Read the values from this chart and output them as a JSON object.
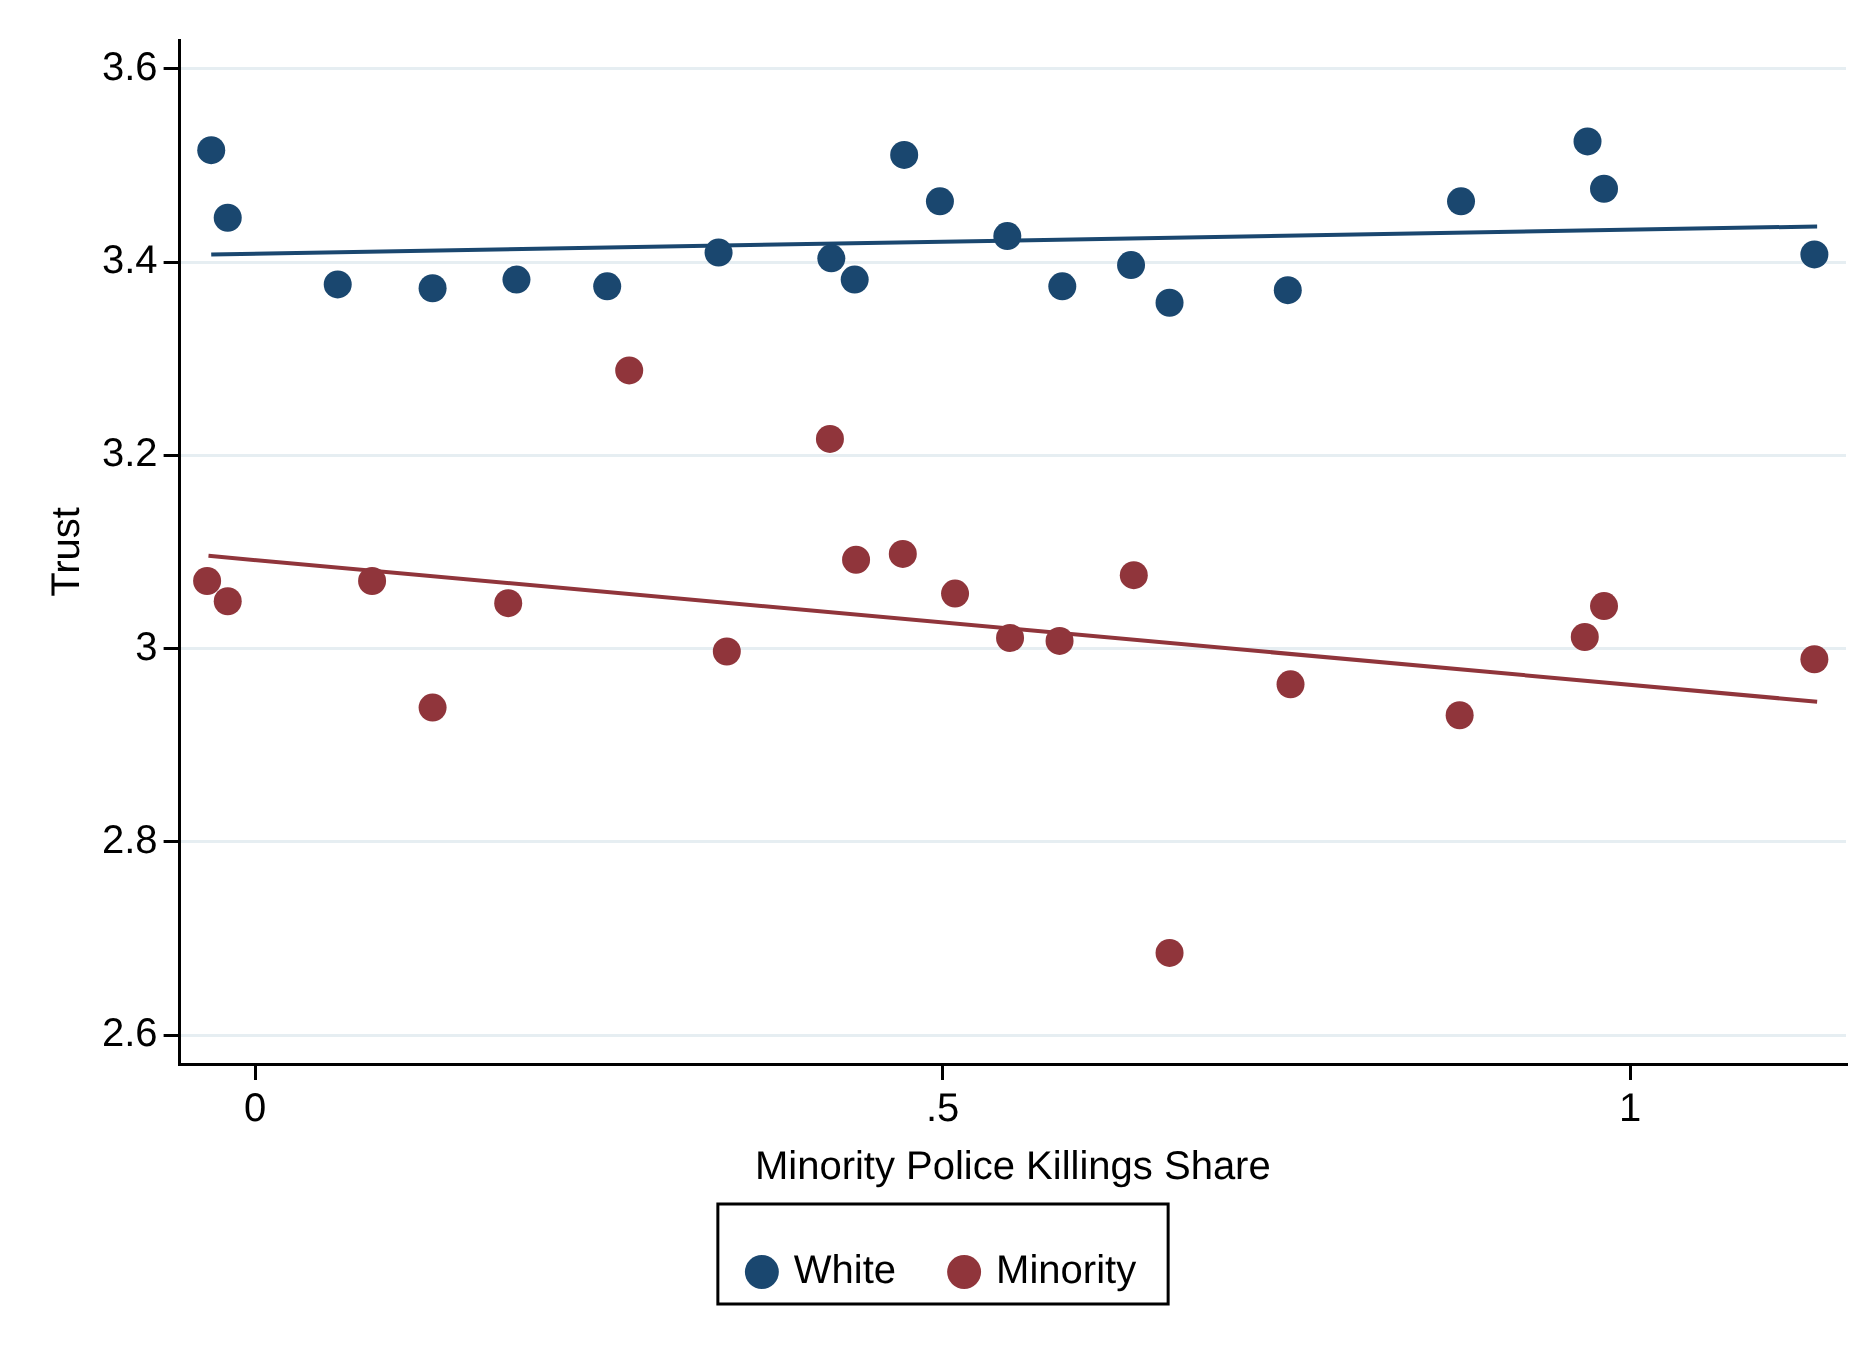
{
  "chart_data": {
    "type": "scatter",
    "xlabel": "Minority Police Killings Share",
    "ylabel": "Trust",
    "xlim": [
      -0.055,
      1.157
    ],
    "xticks": [
      0,
      {
        "value": 0.5,
        "label": ".5"
      },
      1
    ],
    "ylim": [
      2.57,
      3.63
    ],
    "yticks": [
      2.6,
      2.8,
      3,
      3.2,
      3.4,
      3.6
    ],
    "grid": "y",
    "legend": "bottom",
    "series": [
      {
        "name": "White",
        "color": "#1a476f",
        "marker": "circle",
        "x": [
          -0.032,
          -0.02,
          0.06,
          0.129,
          0.19,
          0.256,
          0.337,
          0.419,
          0.436,
          0.472,
          0.498,
          0.547,
          0.587,
          0.637,
          0.665,
          0.751,
          0.877,
          0.969,
          0.981,
          1.134
        ],
        "values": [
          3.516,
          3.446,
          3.377,
          3.373,
          3.382,
          3.375,
          3.41,
          3.404,
          3.382,
          3.511,
          3.463,
          3.427,
          3.375,
          3.397,
          3.358,
          3.371,
          3.463,
          3.525,
          3.476,
          3.408
        ]
      },
      {
        "name": "Minority",
        "color": "#90353b",
        "marker": "circle",
        "x": [
          -0.035,
          -0.02,
          0.085,
          0.129,
          0.184,
          0.272,
          0.343,
          0.418,
          0.437,
          0.471,
          0.509,
          0.549,
          0.585,
          0.639,
          0.665,
          0.753,
          0.876,
          0.967,
          0.981,
          1.134
        ],
        "values": [
          3.07,
          3.049,
          3.07,
          2.939,
          3.047,
          3.288,
          2.997,
          3.217,
          3.092,
          3.098,
          3.057,
          3.011,
          3.008,
          3.076,
          2.685,
          2.963,
          2.931,
          3.012,
          3.044,
          2.989
        ]
      },
      {
        "color": "#1a476f",
        "type": "line",
        "marker": "none",
        "x": [
          -0.032,
          1.136
        ],
        "values": [
          3.408,
          3.437
        ]
      },
      {
        "color": "#90353b",
        "type": "line",
        "marker": "none",
        "x": [
          -0.034,
          1.136
        ],
        "values": [
          3.096,
          2.945
        ]
      }
    ]
  }
}
